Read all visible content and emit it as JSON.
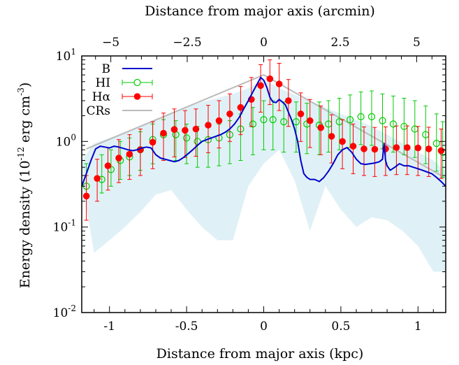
{
  "chart_data": {
    "type": "line",
    "xlabel": "Distance from major axis (kpc)",
    "x2label": "Distance from major axis (arcmin)",
    "ylabel": {
      "prefix": "Energy density (10",
      "exp": "-12",
      "mid": " erg cm",
      "exp2": "-3",
      "suffix": ")"
    },
    "xlim": [
      -1.18,
      1.18
    ],
    "ylim": [
      0.01,
      10
    ],
    "yscale": "log",
    "x2lim": [
      -5.95,
      5.95
    ],
    "x_ticks": [
      {
        "v": -1,
        "label": "-1"
      },
      {
        "v": -0.5,
        "label": "-0.5"
      },
      {
        "v": 0,
        "label": "0"
      },
      {
        "v": 0.5,
        "label": "0.5"
      },
      {
        "v": 1,
        "label": "1"
      }
    ],
    "x2_ticks": [
      {
        "v": -5,
        "label": "−5"
      },
      {
        "v": -2.5,
        "label": "−2.5"
      },
      {
        "v": 0,
        "label": "0"
      },
      {
        "v": 2.5,
        "label": "2.5"
      },
      {
        "v": 5,
        "label": "5"
      }
    ],
    "y_ticks": [
      {
        "v": 0.01,
        "base": "10",
        "exp": "-2"
      },
      {
        "v": 0.1,
        "base": "10",
        "exp": "-1"
      },
      {
        "v": 1,
        "base": "10",
        "exp": "0"
      },
      {
        "v": 10,
        "base": "10",
        "exp": "1"
      }
    ],
    "legend": {
      "position": "top-left"
    },
    "series": [
      {
        "name": "B",
        "kind": "line",
        "color": "#0000cc",
        "x": [
          -1.18,
          -1.15,
          -1.12,
          -1.09,
          -1.06,
          -1.03,
          -1.0,
          -0.97,
          -0.94,
          -0.91,
          -0.88,
          -0.85,
          -0.82,
          -0.79,
          -0.76,
          -0.73,
          -0.7,
          -0.67,
          -0.64,
          -0.61,
          -0.58,
          -0.55,
          -0.52,
          -0.49,
          -0.46,
          -0.43,
          -0.4,
          -0.37,
          -0.34,
          -0.31,
          -0.28,
          -0.25,
          -0.22,
          -0.19,
          -0.16,
          -0.13,
          -0.1,
          -0.07,
          -0.04,
          -0.02,
          0.0,
          0.02,
          0.04,
          0.06,
          0.08,
          0.1,
          0.12,
          0.14,
          0.16,
          0.18,
          0.2,
          0.22,
          0.24,
          0.26,
          0.28,
          0.3,
          0.33,
          0.36,
          0.39,
          0.42,
          0.45,
          0.48,
          0.51,
          0.54,
          0.57,
          0.6,
          0.63,
          0.66,
          0.69,
          0.72,
          0.75,
          0.77,
          0.78,
          0.79,
          0.8,
          0.82,
          0.85,
          0.88,
          0.91,
          0.94,
          0.97,
          1.0,
          1.03,
          1.06,
          1.09,
          1.12,
          1.15,
          1.18
        ],
        "y": [
          0.3,
          0.42,
          0.6,
          0.82,
          0.88,
          0.86,
          0.84,
          0.88,
          0.86,
          0.83,
          0.8,
          0.78,
          0.8,
          0.84,
          0.86,
          0.84,
          0.7,
          0.64,
          0.62,
          0.6,
          0.58,
          0.6,
          0.65,
          0.72,
          0.8,
          0.9,
          1.0,
          1.05,
          1.1,
          1.15,
          1.2,
          1.28,
          1.4,
          1.6,
          1.9,
          2.4,
          3.0,
          3.8,
          4.8,
          5.6,
          5.2,
          4.3,
          3.3,
          2.9,
          2.85,
          3.1,
          2.9,
          2.7,
          2.2,
          1.8,
          1.4,
          1.0,
          0.6,
          0.42,
          0.38,
          0.36,
          0.36,
          0.34,
          0.38,
          0.45,
          0.55,
          0.7,
          0.8,
          0.85,
          0.75,
          0.62,
          0.55,
          0.54,
          0.55,
          0.56,
          0.58,
          0.62,
          0.95,
          0.6,
          0.52,
          0.46,
          0.5,
          0.55,
          0.52,
          0.52,
          0.5,
          0.48,
          0.46,
          0.44,
          0.42,
          0.38,
          0.34,
          0.3
        ]
      },
      {
        "name": "HI",
        "kind": "points-open",
        "color": "#00cc00",
        "x": [
          -1.15,
          -1.05,
          -0.99,
          -0.93,
          -0.87,
          -0.8,
          -0.72,
          -0.65,
          -0.57,
          -0.5,
          -0.43,
          -0.36,
          -0.29,
          -0.22,
          -0.15,
          -0.07,
          0.0,
          0.06,
          0.13,
          0.21,
          0.28,
          0.36,
          0.42,
          0.49,
          0.56,
          0.63,
          0.7,
          0.77,
          0.84,
          0.91,
          0.98,
          1.05,
          1.12,
          1.16
        ],
        "y": [
          0.3,
          0.36,
          0.47,
          0.6,
          0.66,
          0.8,
          1.05,
          1.2,
          1.2,
          1.1,
          1.0,
          1.05,
          1.1,
          1.2,
          1.4,
          1.6,
          1.8,
          1.8,
          1.7,
          1.7,
          1.6,
          1.55,
          1.6,
          1.7,
          1.8,
          1.95,
          1.95,
          1.75,
          1.6,
          1.5,
          1.4,
          1.2,
          0.95,
          0.75
        ],
        "y_low": [
          0.22,
          0.25,
          0.3,
          0.36,
          0.4,
          0.46,
          0.55,
          0.62,
          0.6,
          0.55,
          0.5,
          0.5,
          0.52,
          0.55,
          0.6,
          0.7,
          0.8,
          0.8,
          0.75,
          0.75,
          0.72,
          0.7,
          0.75,
          0.8,
          0.85,
          0.92,
          0.9,
          0.82,
          0.75,
          0.7,
          0.65,
          0.55,
          0.45,
          0.38
        ],
        "y_high": [
          0.55,
          0.7,
          0.8,
          1.0,
          1.1,
          1.3,
          1.6,
          1.8,
          1.75,
          1.6,
          1.5,
          1.55,
          1.6,
          1.75,
          2.1,
          2.5,
          3.0,
          3.0,
          2.9,
          2.9,
          2.8,
          2.9,
          3.0,
          3.2,
          3.5,
          3.8,
          3.9,
          3.6,
          3.4,
          3.2,
          3.0,
          2.6,
          2.1,
          1.7
        ]
      },
      {
        "name": "Hα",
        "kind": "points-filled",
        "color": "#ff0000",
        "x": [
          -1.15,
          -1.08,
          -1.01,
          -0.94,
          -0.87,
          -0.8,
          -0.72,
          -0.65,
          -0.58,
          -0.51,
          -0.44,
          -0.36,
          -0.29,
          -0.22,
          -0.15,
          -0.08,
          -0.02,
          0.04,
          0.1,
          0.16,
          0.24,
          0.3,
          0.37,
          0.44,
          0.51,
          0.58,
          0.65,
          0.72,
          0.79,
          0.86,
          0.93,
          1.0,
          1.07,
          1.15
        ],
        "y": [
          0.23,
          0.37,
          0.52,
          0.64,
          0.71,
          0.8,
          0.98,
          1.25,
          1.38,
          1.35,
          1.4,
          1.55,
          1.75,
          2.1,
          2.5,
          3.1,
          4.5,
          5.4,
          4.7,
          3.0,
          2.1,
          1.75,
          1.45,
          1.15,
          1.0,
          0.88,
          0.82,
          0.81,
          0.82,
          0.85,
          0.85,
          0.84,
          0.82,
          0.78
        ],
        "y_low": [
          0.12,
          0.2,
          0.27,
          0.33,
          0.36,
          0.4,
          0.48,
          0.6,
          0.66,
          0.65,
          0.67,
          0.74,
          0.84,
          1.0,
          1.2,
          1.5,
          2.2,
          2.7,
          2.3,
          1.5,
          1.0,
          0.85,
          0.7,
          0.56,
          0.48,
          0.42,
          0.4,
          0.39,
          0.4,
          0.41,
          0.41,
          0.4,
          0.39,
          0.37
        ],
        "y_high": [
          0.4,
          0.62,
          0.85,
          1.05,
          1.2,
          1.4,
          1.7,
          2.15,
          2.4,
          2.3,
          2.4,
          2.65,
          3.0,
          3.6,
          4.4,
          5.6,
          7.9,
          9.0,
          8.2,
          5.3,
          3.7,
          3.1,
          2.6,
          2.05,
          1.8,
          1.6,
          1.48,
          1.46,
          1.48,
          1.52,
          1.52,
          1.5,
          1.47,
          1.4
        ]
      },
      {
        "name": "CRs",
        "kind": "line",
        "color": "#bbbbbb",
        "x": [
          -1.15,
          0.0,
          1.15
        ],
        "y": [
          0.82,
          6.0,
          0.4
        ]
      }
    ],
    "band": {
      "color": "#dff1f6",
      "x": [
        -1.18,
        -1.1,
        -1.0,
        -0.9,
        -0.8,
        -0.7,
        -0.6,
        -0.5,
        -0.4,
        -0.3,
        -0.2,
        -0.1,
        0.0,
        0.1,
        0.2,
        0.3,
        0.4,
        0.5,
        0.6,
        0.7,
        0.8,
        0.9,
        1.0,
        1.1,
        1.18
      ],
      "y_low": [
        0.35,
        0.05,
        0.07,
        0.1,
        0.15,
        0.24,
        0.27,
        0.16,
        0.1,
        0.07,
        0.07,
        0.3,
        0.55,
        0.8,
        0.35,
        0.09,
        0.3,
        0.16,
        0.1,
        0.13,
        0.12,
        0.09,
        0.06,
        0.03,
        0.03
      ],
      "y_high": [
        0.6,
        0.95,
        1.1,
        1.25,
        1.5,
        1.8,
        2.1,
        2.5,
        2.9,
        3.2,
        3.6,
        4.2,
        5.3,
        4.2,
        3.5,
        3.0,
        2.5,
        2.1,
        1.8,
        1.5,
        1.2,
        0.95,
        0.75,
        0.6,
        0.45
      ]
    }
  }
}
